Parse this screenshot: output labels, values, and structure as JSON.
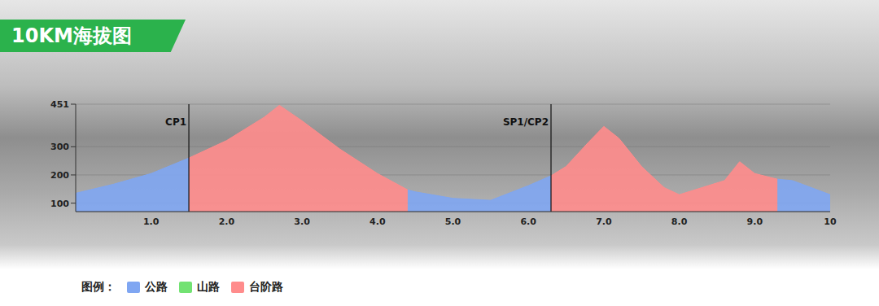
{
  "chart_data": {
    "type": "area",
    "title": "10KM海拔图",
    "legend_title": "图例：",
    "legend": "bottom-left",
    "grid": true,
    "x": [
      0,
      0.5,
      1.0,
      1.5,
      2.0,
      2.5,
      2.7,
      3.0,
      3.5,
      4.0,
      4.4,
      4.5,
      5.0,
      5.5,
      6.0,
      6.3,
      6.5,
      6.8,
      7.0,
      7.2,
      7.5,
      7.8,
      8.0,
      8.3,
      8.6,
      8.8,
      9.0,
      9.3,
      9.5,
      10
    ],
    "series": [
      {
        "name": "公路",
        "color": "#7fa6f2",
        "values": [
          135,
          167,
          205,
          260,
          null,
          null,
          null,
          null,
          null,
          null,
          147,
          140,
          117,
          110,
          162,
          197,
          null,
          null,
          null,
          null,
          null,
          null,
          null,
          null,
          null,
          null,
          null,
          185,
          180,
          130
        ]
      },
      {
        "name": "山路",
        "color": "#72e272",
        "values": [
          null,
          null,
          null,
          null,
          null,
          null,
          null,
          null,
          null,
          null,
          null,
          null,
          null,
          null,
          null,
          null,
          null,
          null,
          null,
          null,
          null,
          null,
          null,
          null,
          null,
          null,
          null,
          null,
          null,
          null
        ]
      },
      {
        "name": "台阶路",
        "color": "#ff8c8c",
        "values": [
          null,
          null,
          null,
          260,
          322,
          405,
          447,
          392,
          292,
          205,
          147,
          null,
          null,
          null,
          null,
          197,
          230,
          317,
          372,
          330,
          230,
          155,
          130,
          155,
          180,
          247,
          205,
          185,
          null,
          null
        ]
      }
    ],
    "xlim": [
      0,
      10
    ],
    "xticks": [
      {
        "value": 1,
        "label": "1.0"
      },
      {
        "value": 2,
        "label": "2.0"
      },
      {
        "value": 3,
        "label": "3.0"
      },
      {
        "value": 4,
        "label": "4.0"
      },
      {
        "value": 5,
        "label": "5.0"
      },
      {
        "value": 6,
        "label": "6.0"
      },
      {
        "value": 7,
        "label": "7.0"
      },
      {
        "value": 8,
        "label": "8.0"
      },
      {
        "value": 9,
        "label": "9.0"
      },
      10
    ],
    "ylim": [
      70,
      451
    ],
    "yticks": [
      100,
      200,
      300,
      451
    ],
    "annotations": [
      {
        "text": "CP1",
        "x": 1.5
      },
      {
        "text": "SP1/CP2",
        "x": 6.3
      }
    ]
  }
}
